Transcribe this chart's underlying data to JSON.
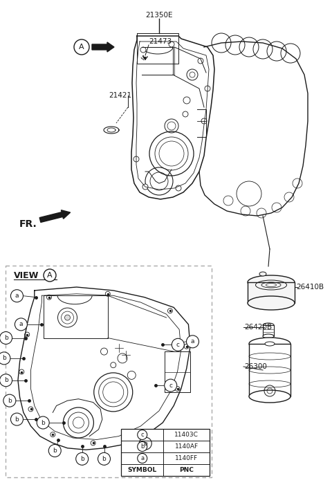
{
  "bg_color": "#ffffff",
  "line_color": "#1a1a1a",
  "gray_color": "#666666",
  "symbols": [
    {
      "sym": "a",
      "pnc": "1140FF"
    },
    {
      "sym": "b",
      "pnc": "1140AF"
    },
    {
      "sym": "c",
      "pnc": "11403C"
    }
  ],
  "figsize": [
    4.8,
    7.04
  ],
  "dpi": 100
}
